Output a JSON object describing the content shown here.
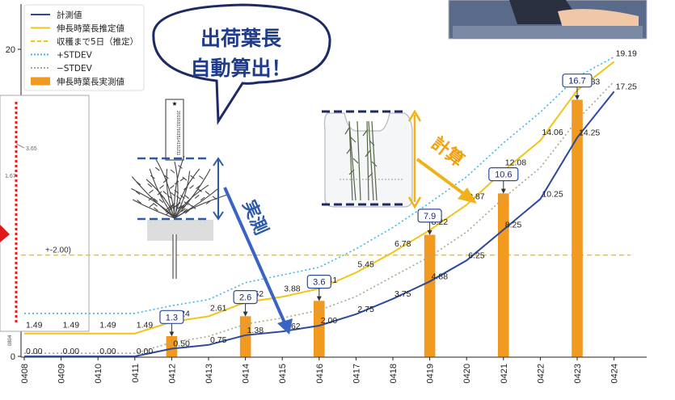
{
  "chart_data": {
    "type": "line",
    "x": [
      "0408",
      "0409",
      "0410",
      "0411",
      "0412",
      "0413",
      "0414",
      "0415",
      "0416",
      "0417",
      "0418",
      "0419",
      "0420",
      "0421",
      "0422",
      "0423",
      "0424"
    ],
    "ylim": [
      0,
      20
    ],
    "yticks": [
      0,
      20
    ],
    "series": [
      {
        "name": "計測値",
        "color": "#2d4a9a",
        "style": "solid",
        "values": [
          0.0,
          0.0,
          0.0,
          0.0,
          0.5,
          0.75,
          1.38,
          1.62,
          2.0,
          2.75,
          3.75,
          4.88,
          6.25,
          8.25,
          10.25,
          14.25,
          17.25
        ],
        "labels": [
          "0.00",
          "0.00",
          "0.00",
          "0.00",
          "0.50",
          "0.75",
          "1.38",
          "1.62",
          "2.00",
          "2.75",
          "3.75",
          "4.88",
          "6.25",
          "8.25",
          "10.25",
          "14.25",
          "17.25"
        ]
      },
      {
        "name": "伸長時葉長推定値",
        "color": "#f0c419",
        "style": "solid",
        "values": [
          1.49,
          1.49,
          1.49,
          1.49,
          2.24,
          2.61,
          3.52,
          3.88,
          4.41,
          5.45,
          6.78,
          8.22,
          9.87,
          12.08,
          14.06,
          17.33,
          19.19
        ],
        "labels": [
          "1.49",
          "1.49",
          "1.49",
          "1.49",
          "2.24",
          "2.61",
          "3.52",
          "3.88",
          "4.41",
          "5.45",
          "6.78",
          "8.22",
          "9.87",
          "12.08",
          "14.06",
          "17.33",
          "19.19"
        ]
      },
      {
        "name": "+STDEV",
        "color": "#39b8e8",
        "style": "dotted",
        "values": [
          2.8,
          2.8,
          2.8,
          2.8,
          3.3,
          3.7,
          4.8,
          5.3,
          5.8,
          7.0,
          8.4,
          10.0,
          11.7,
          13.9,
          15.9,
          18.2,
          19.5
        ]
      },
      {
        "name": "−STDEV",
        "color": "#a7a987",
        "style": "dotted",
        "values": [
          0.2,
          0.2,
          0.2,
          0.2,
          0.9,
          1.3,
          2.1,
          2.5,
          3.0,
          3.9,
          5.2,
          6.5,
          8.1,
          10.3,
          12.3,
          15.4,
          17.9
        ]
      },
      {
        "name": "収穫まで5日（推定）",
        "color": "#f0c419",
        "style": "dashed",
        "constant": 6.6,
        "label": "+-2.00)"
      }
    ],
    "bars": {
      "name": "伸長時葉長実測値",
      "color": "#f29a1f",
      "points": [
        {
          "x": "0412",
          "value": 1.3,
          "label": "1.3"
        },
        {
          "x": "0414",
          "value": 2.6,
          "label": "2.6"
        },
        {
          "x": "0416",
          "value": 3.6,
          "label": "3.6"
        },
        {
          "x": "0419",
          "value": 7.9,
          "label": "7.9"
        },
        {
          "x": "0421",
          "value": 10.6,
          "label": "10.6"
        },
        {
          "x": "0423",
          "value": 16.7,
          "label": "16.7"
        }
      ]
    },
    "legend": {
      "placement": "top-left",
      "entries": [
        "計測値",
        "伸長時葉長推定値",
        "収穫まで5日（推定）",
        "+STDEV",
        "−STDEV",
        "伸長時葉長実測値"
      ]
    },
    "annotations": {
      "bubble_line1": "出荷葉長",
      "bubble_line2": "自動算出！",
      "measured_label": "実測",
      "calculated_label": "計算",
      "inset_value_1": "3.65",
      "inset_value_2": "1.67",
      "inset_axis_label": "0804",
      "ruler_digits": "20191817161514131211"
    }
  }
}
